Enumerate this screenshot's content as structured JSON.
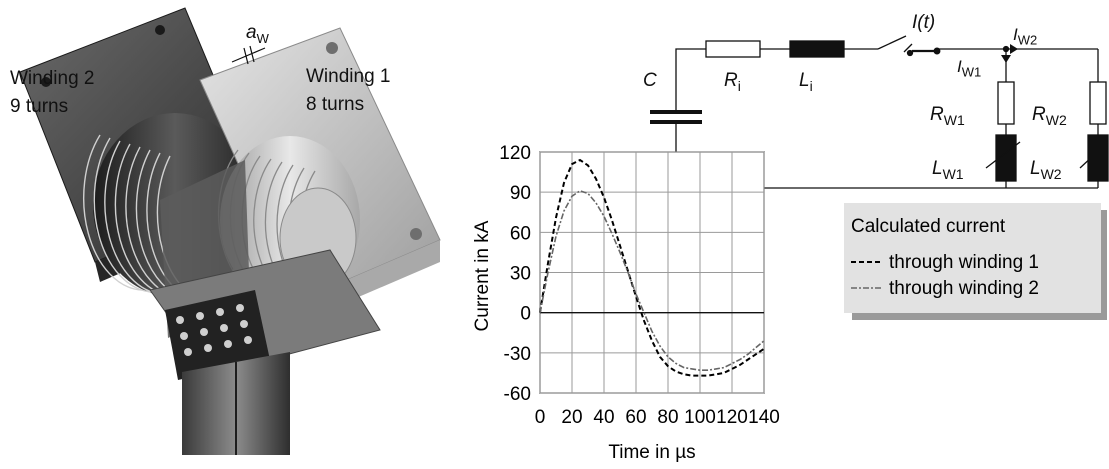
{
  "model": {
    "winding2_name": "Winding 2",
    "winding2_turns": "9 turns",
    "winding1_name": "Winding 1",
    "winding1_turns": "8 turns",
    "gap_symbol": "a",
    "gap_subscript": "W"
  },
  "circuit": {
    "capacitor": "C",
    "resistor_main": "R",
    "resistor_main_sub": "i",
    "inductor_main": "L",
    "inductor_main_sub": "i",
    "current_total": "I(t)",
    "current_w1": "I",
    "current_w1_sub": "W1",
    "current_w2": "I",
    "current_w2_sub": "W2",
    "resistor_w1": "R",
    "resistor_w1_sub": "W1",
    "resistor_w2": "R",
    "resistor_w2_sub": "W2",
    "inductor_w1": "L",
    "inductor_w1_sub": "W1",
    "inductor_w2": "L",
    "inductor_w2_sub": "W2"
  },
  "chart_data": {
    "type": "line",
    "title": "",
    "xlabel": "Time in µs",
    "ylabel": "Current in kA",
    "xlim": [
      0,
      140
    ],
    "ylim": [
      -60,
      120
    ],
    "xticks": [
      0,
      20,
      40,
      60,
      80,
      100,
      120,
      140
    ],
    "yticks": [
      -60,
      -30,
      0,
      30,
      60,
      90,
      120
    ],
    "grid": true,
    "legend": {
      "title": "Calculated current",
      "placement": "right"
    },
    "series": [
      {
        "name": "through winding 1",
        "style": "dashed",
        "color": "#000000",
        "x": [
          0,
          5,
          10,
          15,
          20,
          25,
          30,
          35,
          40,
          45,
          50,
          55,
          60,
          65,
          70,
          75,
          80,
          85,
          90,
          95,
          100,
          105,
          110,
          115,
          120,
          125,
          130,
          135,
          140
        ],
        "y": [
          0,
          37,
          71,
          97,
          111,
          114,
          110,
          100,
          86,
          69,
          50,
          31,
          12,
          -6,
          -21,
          -33,
          -40,
          -44,
          -46,
          -47,
          -47,
          -47,
          -46,
          -45,
          -42,
          -39,
          -35,
          -31,
          -27
        ]
      },
      {
        "name": "through winding 2",
        "style": "dash-dot",
        "color": "#666666",
        "x": [
          0,
          5,
          10,
          15,
          20,
          25,
          30,
          35,
          40,
          45,
          50,
          55,
          60,
          65,
          70,
          75,
          80,
          85,
          90,
          95,
          100,
          105,
          110,
          115,
          120,
          125,
          130,
          135,
          140
        ],
        "y": [
          0,
          30,
          57,
          76,
          87,
          91,
          89,
          82,
          72,
          59,
          45,
          30,
          14,
          0,
          -14,
          -25,
          -33,
          -38,
          -41,
          -42,
          -43,
          -43,
          -42,
          -41,
          -38,
          -35,
          -31,
          -26,
          -21
        ]
      }
    ]
  }
}
